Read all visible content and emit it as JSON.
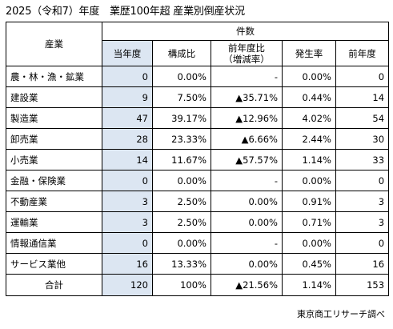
{
  "title": "2025（令和7）年度　業歴100年超 産業別倒産状況",
  "header": {
    "industry": "産業",
    "count_group": "件数",
    "columns": [
      "当年度",
      "構成比",
      "前年度比",
      "（増減率）",
      "発生率",
      "前年度"
    ]
  },
  "rows": [
    {
      "industry": "農・林・漁・鉱業",
      "current": "0",
      "share": "0.00%",
      "yoy": "-",
      "rate": "0.00%",
      "previous": "0"
    },
    {
      "industry": "建設業",
      "current": "9",
      "share": "7.50%",
      "yoy": "▲35.71%",
      "rate": "0.44%",
      "previous": "14"
    },
    {
      "industry": "製造業",
      "current": "47",
      "share": "39.17%",
      "yoy": "▲12.96%",
      "rate": "4.02%",
      "previous": "54"
    },
    {
      "industry": "卸売業",
      "current": "28",
      "share": "23.33%",
      "yoy": "▲6.66%",
      "rate": "2.44%",
      "previous": "30"
    },
    {
      "industry": "小売業",
      "current": "14",
      "share": "11.67%",
      "yoy": "▲57.57%",
      "rate": "1.14%",
      "previous": "33"
    },
    {
      "industry": "金融・保険業",
      "current": "0",
      "share": "0.00%",
      "yoy": "-",
      "rate": "0.00%",
      "previous": "0"
    },
    {
      "industry": "不動産業",
      "current": "3",
      "share": "2.50%",
      "yoy": "0.00%",
      "rate": "0.91%",
      "previous": "3"
    },
    {
      "industry": "運輸業",
      "current": "3",
      "share": "2.50%",
      "yoy": "0.00%",
      "rate": "0.71%",
      "previous": "3"
    },
    {
      "industry": "情報通信業",
      "current": "0",
      "share": "0.00%",
      "yoy": "-",
      "rate": "0.00%",
      "previous": "0"
    },
    {
      "industry": "サービス業他",
      "current": "16",
      "share": "13.33%",
      "yoy": "0.00%",
      "rate": "0.45%",
      "previous": "16"
    }
  ],
  "total": {
    "industry": "合計",
    "current": "120",
    "share": "100%",
    "yoy": "▲21.56%",
    "rate": "1.14%",
    "previous": "153"
  },
  "source": "東京商工リサーチ調べ",
  "colors": {
    "highlight": "#dce6f2",
    "border": "#000000"
  }
}
